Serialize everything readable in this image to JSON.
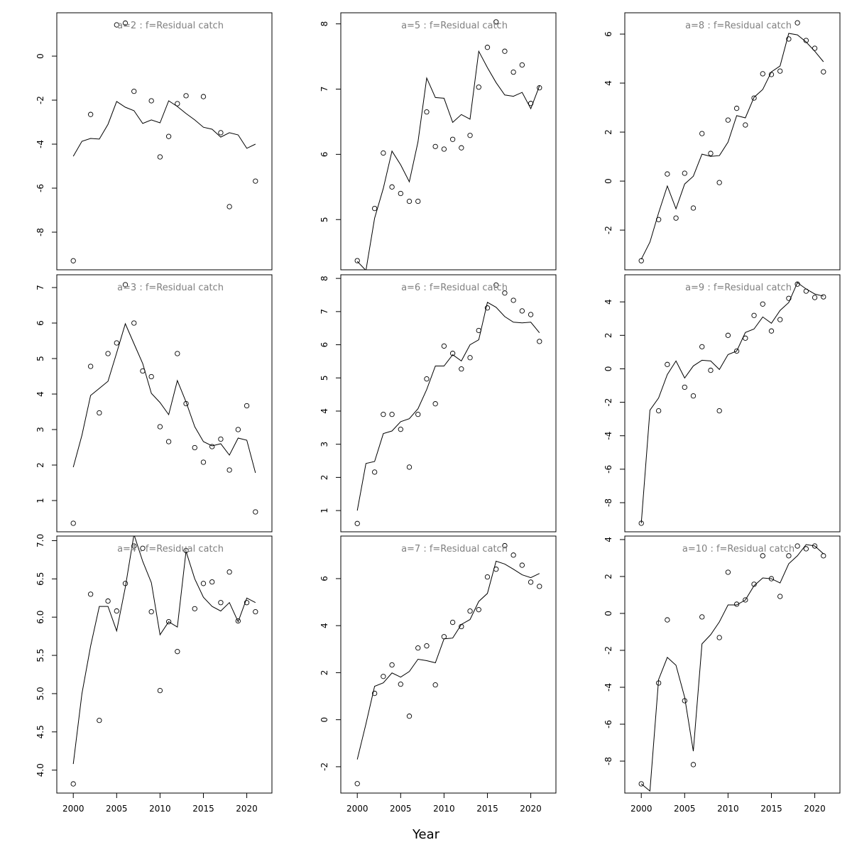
{
  "chart_data": {
    "type": "scatter",
    "layout": "3x3 panel grid, column-major",
    "xlabel": "Year",
    "x": [
      2000,
      2001,
      2002,
      2003,
      2004,
      2005,
      2006,
      2007,
      2008,
      2009,
      2010,
      2011,
      2012,
      2013,
      2014,
      2015,
      2016,
      2017,
      2018,
      2019,
      2020,
      2021
    ],
    "xlim": [
      1998.1,
      2022.9
    ],
    "xticks": [
      2000,
      2005,
      2010,
      2015,
      2020
    ],
    "legend": "none",
    "grid": false,
    "panels": [
      {
        "title": "a=2  :  f=Residual catch",
        "ylim": [
          -9.71,
          1.97
        ],
        "yticks": [
          -8,
          -6,
          -4,
          -2,
          0
        ],
        "ytick_labels": [
          "-8",
          "-6",
          "-4",
          "-2",
          "0"
        ],
        "points": [
          -9.3,
          null,
          -2.65,
          null,
          null,
          1.42,
          1.5,
          -1.6,
          null,
          -2.03,
          -4.58,
          -3.65,
          -2.16,
          -1.8,
          null,
          -1.84,
          null,
          -3.48,
          -6.84,
          null,
          null,
          -5.68
        ],
        "fitted": [
          -4.55,
          -3.87,
          -3.74,
          -3.77,
          -3.1,
          -2.06,
          -2.32,
          -2.48,
          -3.06,
          -2.9,
          -3.03,
          -2.03,
          -2.29,
          -2.61,
          -2.9,
          -3.23,
          -3.32,
          -3.68,
          -3.48,
          -3.58,
          -4.19,
          -4.0
        ]
      },
      {
        "title": "a=3  :  f=Residual catch",
        "ylim": [
          0.12,
          7.36
        ],
        "yticks": [
          1,
          2,
          3,
          4,
          5,
          6,
          7
        ],
        "ytick_labels": [
          "1",
          "2",
          "3",
          "4",
          "5",
          "6",
          "7"
        ],
        "points": [
          0.36,
          null,
          4.78,
          3.47,
          5.14,
          5.44,
          7.08,
          6.0,
          4.65,
          4.49,
          3.08,
          2.66,
          5.14,
          3.73,
          2.49,
          2.08,
          2.52,
          2.73,
          1.86,
          3.0,
          3.67,
          0.68
        ],
        "fitted": [
          1.94,
          2.84,
          3.96,
          4.16,
          4.36,
          5.16,
          5.98,
          5.42,
          4.86,
          4.02,
          3.76,
          3.42,
          4.38,
          3.78,
          3.08,
          2.66,
          2.54,
          2.6,
          2.28,
          2.76,
          2.7,
          1.78
        ]
      },
      {
        "title": "a=4  :  f=Residual catch",
        "ylim": [
          3.7,
          7.06
        ],
        "yticks": [
          4.0,
          4.5,
          5.0,
          5.5,
          6.0,
          6.5,
          7.0
        ],
        "ytick_labels": [
          "4.0",
          "4.5",
          "5.0",
          "5.5",
          "6.0",
          "6.5",
          "7.0"
        ],
        "points": [
          3.82,
          null,
          6.3,
          4.65,
          6.21,
          6.08,
          6.44,
          6.93,
          6.9,
          6.07,
          5.04,
          5.94,
          5.55,
          6.87,
          6.11,
          6.44,
          6.46,
          6.19,
          6.59,
          5.95,
          6.19,
          6.07
        ],
        "fitted": [
          4.08,
          5.0,
          5.62,
          6.14,
          6.14,
          5.82,
          6.39,
          7.08,
          6.73,
          6.45,
          5.77,
          5.94,
          5.87,
          6.86,
          6.5,
          6.26,
          6.14,
          6.08,
          6.19,
          5.94,
          6.25,
          6.19
        ]
      },
      {
        "title": "a=5  :  f=Residual catch",
        "ylim": [
          4.23,
          8.17
        ],
        "yticks": [
          5,
          6,
          7,
          8
        ],
        "ytick_labels": [
          "5",
          "6",
          "7",
          "8"
        ],
        "points": [
          4.37,
          null,
          5.17,
          6.02,
          5.5,
          5.4,
          5.28,
          5.28,
          6.65,
          6.12,
          6.08,
          6.23,
          6.1,
          6.29,
          7.03,
          7.64,
          8.03,
          7.58,
          7.26,
          7.37,
          6.78,
          7.02
        ],
        "fitted": [
          4.36,
          4.22,
          5.02,
          5.48,
          6.05,
          5.84,
          5.58,
          6.19,
          7.17,
          6.87,
          6.86,
          6.49,
          6.61,
          6.54,
          7.58,
          7.33,
          7.1,
          6.91,
          6.89,
          6.95,
          6.7,
          7.05
        ]
      },
      {
        "title": "a=6  :  f=Residual catch",
        "ylim": [
          0.36,
          8.11
        ],
        "yticks": [
          1,
          2,
          3,
          4,
          5,
          6,
          7,
          8
        ],
        "ytick_labels": [
          "1",
          "2",
          "3",
          "4",
          "5",
          "6",
          "7",
          "8"
        ],
        "points": [
          0.61,
          null,
          2.16,
          3.9,
          3.9,
          3.45,
          2.31,
          3.9,
          4.97,
          4.22,
          5.96,
          5.74,
          5.27,
          5.61,
          6.43,
          7.11,
          7.8,
          7.56,
          7.34,
          7.02,
          6.91,
          6.1
        ],
        "fitted": [
          1.0,
          2.42,
          2.48,
          3.32,
          3.4,
          3.68,
          3.77,
          4.07,
          4.65,
          5.36,
          5.36,
          5.7,
          5.51,
          6.0,
          6.15,
          7.28,
          7.13,
          6.85,
          6.68,
          6.66,
          6.68,
          6.36
        ]
      },
      {
        "title": "a=7  :  f=Residual catch",
        "ylim": [
          -3.12,
          7.81
        ],
        "yticks": [
          -2,
          0,
          2,
          4,
          6
        ],
        "ytick_labels": [
          "-2",
          "0",
          "2",
          "4",
          "6"
        ],
        "points": [
          -2.72,
          null,
          1.12,
          1.84,
          2.33,
          1.51,
          0.15,
          3.05,
          3.14,
          1.48,
          3.53,
          4.14,
          3.96,
          4.62,
          4.68,
          6.07,
          6.4,
          7.4,
          7.0,
          6.57,
          5.85,
          5.67
        ],
        "fitted": [
          -1.69,
          -0.18,
          1.42,
          1.57,
          1.99,
          1.81,
          2.05,
          2.57,
          2.51,
          2.42,
          3.44,
          3.47,
          4.05,
          4.26,
          5.03,
          5.37,
          6.74,
          6.62,
          6.4,
          6.16,
          6.04,
          6.22
        ]
      },
      {
        "title": "a=8  :  f=Residual catch",
        "ylim": [
          -3.62,
          6.87
        ],
        "yticks": [
          -2,
          0,
          2,
          4,
          6
        ],
        "ytick_labels": [
          "-2",
          "0",
          "2",
          "4",
          "6"
        ],
        "points": [
          -3.25,
          null,
          -1.57,
          0.29,
          -1.51,
          0.32,
          -1.1,
          1.94,
          1.13,
          -0.06,
          2.49,
          2.97,
          2.29,
          3.39,
          4.38,
          4.35,
          4.49,
          5.8,
          6.46,
          5.74,
          5.42,
          4.46
        ],
        "fitted": [
          -3.19,
          -2.49,
          -1.3,
          -0.2,
          -1.13,
          -0.12,
          0.2,
          1.1,
          1.01,
          1.04,
          1.59,
          2.67,
          2.58,
          3.42,
          3.74,
          4.46,
          4.7,
          6.03,
          5.97,
          5.68,
          5.3,
          4.87
        ]
      },
      {
        "title": "a=9  :  f=Residual catch",
        "ylim": [
          -9.74,
          5.62
        ],
        "yticks": [
          -8,
          -6,
          -4,
          -2,
          0,
          2,
          4
        ],
        "ytick_labels": [
          "-8",
          "-6",
          "-4",
          "-2",
          "0",
          "2",
          "4"
        ],
        "points": [
          -9.23,
          null,
          -2.51,
          0.26,
          null,
          -1.1,
          -1.62,
          1.32,
          -0.09,
          -2.51,
          2.0,
          1.06,
          1.83,
          3.19,
          3.87,
          2.26,
          2.94,
          4.21,
          5.06,
          4.64,
          4.26,
          4.3
        ],
        "fitted": [
          -9.23,
          -2.47,
          -1.74,
          -0.34,
          0.47,
          -0.55,
          0.17,
          0.51,
          0.47,
          -0.04,
          0.85,
          1.06,
          2.17,
          2.38,
          3.1,
          2.72,
          3.49,
          3.96,
          5.15,
          4.77,
          4.47,
          4.34
        ]
      },
      {
        "title": "a=10  :  f=Residual catch",
        "ylim": [
          -9.73,
          4.19
        ],
        "yticks": [
          -8,
          -6,
          -4,
          -2,
          0,
          2,
          4
        ],
        "ytick_labels": [
          "-8",
          "-6",
          "-4",
          "-2",
          "0",
          "2",
          "4"
        ],
        "points": [
          -9.23,
          null,
          -3.77,
          -0.35,
          null,
          -4.73,
          -8.19,
          -0.19,
          null,
          -1.31,
          2.23,
          0.5,
          0.73,
          1.58,
          3.12,
          1.88,
          0.92,
          3.12,
          3.65,
          3.5,
          3.65,
          3.12
        ],
        "fitted": [
          -9.23,
          -9.62,
          -3.58,
          -2.38,
          -2.81,
          -4.54,
          -7.46,
          -1.65,
          -1.15,
          -0.46,
          0.46,
          0.46,
          0.73,
          1.5,
          1.92,
          1.88,
          1.65,
          2.69,
          3.12,
          3.73,
          3.65,
          3.23
        ]
      }
    ]
  }
}
